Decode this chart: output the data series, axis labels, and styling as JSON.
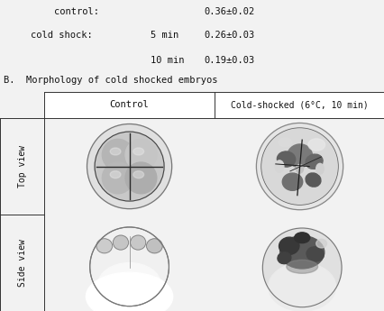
{
  "title_text": "B.  Morphology of cold shocked embryos",
  "col_label1": "Control",
  "col_label2": "Cold-shocked (6°C, 10 min)",
  "row_label1": "Top view",
  "row_label2": "Side view",
  "stat1_label": "control:",
  "stat1_val": "0.36±0.02",
  "stat2_label": "cold shock:",
  "stat2_t1": "5 min",
  "stat2_v1": "0.26±0.03",
  "stat2_t2": "10 min",
  "stat2_v2": "0.19±0.03",
  "bg_color": "#f2f2f2",
  "cell_bg": "#ffffff",
  "text_color": "#111111",
  "border_color": "#333333"
}
